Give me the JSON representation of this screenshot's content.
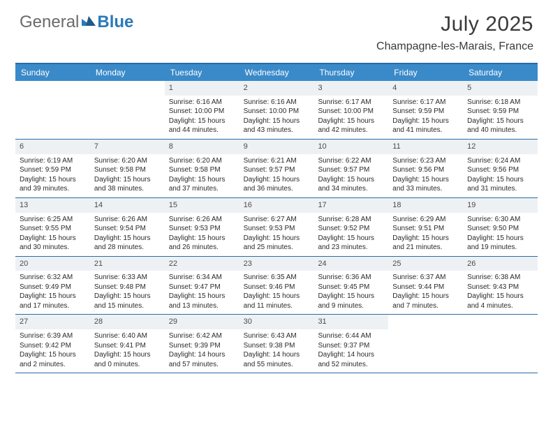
{
  "logo": {
    "part1": "General",
    "part2": "Blue"
  },
  "title": "July 2025",
  "location": "Champagne-les-Marais, France",
  "colors": {
    "header_bar": "#3a8ac9",
    "rule": "#2a6aa8",
    "daynum_bg": "#eef1f4",
    "text": "#2a2a2a",
    "logo_gray": "#6a6a6a",
    "logo_blue": "#2a7ab9"
  },
  "weekdays": [
    "Sunday",
    "Monday",
    "Tuesday",
    "Wednesday",
    "Thursday",
    "Friday",
    "Saturday"
  ],
  "weeks": [
    [
      null,
      null,
      {
        "n": "1",
        "sr": "Sunrise: 6:16 AM",
        "ss": "Sunset: 10:00 PM",
        "dl": "Daylight: 15 hours and 44 minutes."
      },
      {
        "n": "2",
        "sr": "Sunrise: 6:16 AM",
        "ss": "Sunset: 10:00 PM",
        "dl": "Daylight: 15 hours and 43 minutes."
      },
      {
        "n": "3",
        "sr": "Sunrise: 6:17 AM",
        "ss": "Sunset: 10:00 PM",
        "dl": "Daylight: 15 hours and 42 minutes."
      },
      {
        "n": "4",
        "sr": "Sunrise: 6:17 AM",
        "ss": "Sunset: 9:59 PM",
        "dl": "Daylight: 15 hours and 41 minutes."
      },
      {
        "n": "5",
        "sr": "Sunrise: 6:18 AM",
        "ss": "Sunset: 9:59 PM",
        "dl": "Daylight: 15 hours and 40 minutes."
      }
    ],
    [
      {
        "n": "6",
        "sr": "Sunrise: 6:19 AM",
        "ss": "Sunset: 9:59 PM",
        "dl": "Daylight: 15 hours and 39 minutes."
      },
      {
        "n": "7",
        "sr": "Sunrise: 6:20 AM",
        "ss": "Sunset: 9:58 PM",
        "dl": "Daylight: 15 hours and 38 minutes."
      },
      {
        "n": "8",
        "sr": "Sunrise: 6:20 AM",
        "ss": "Sunset: 9:58 PM",
        "dl": "Daylight: 15 hours and 37 minutes."
      },
      {
        "n": "9",
        "sr": "Sunrise: 6:21 AM",
        "ss": "Sunset: 9:57 PM",
        "dl": "Daylight: 15 hours and 36 minutes."
      },
      {
        "n": "10",
        "sr": "Sunrise: 6:22 AM",
        "ss": "Sunset: 9:57 PM",
        "dl": "Daylight: 15 hours and 34 minutes."
      },
      {
        "n": "11",
        "sr": "Sunrise: 6:23 AM",
        "ss": "Sunset: 9:56 PM",
        "dl": "Daylight: 15 hours and 33 minutes."
      },
      {
        "n": "12",
        "sr": "Sunrise: 6:24 AM",
        "ss": "Sunset: 9:56 PM",
        "dl": "Daylight: 15 hours and 31 minutes."
      }
    ],
    [
      {
        "n": "13",
        "sr": "Sunrise: 6:25 AM",
        "ss": "Sunset: 9:55 PM",
        "dl": "Daylight: 15 hours and 30 minutes."
      },
      {
        "n": "14",
        "sr": "Sunrise: 6:26 AM",
        "ss": "Sunset: 9:54 PM",
        "dl": "Daylight: 15 hours and 28 minutes."
      },
      {
        "n": "15",
        "sr": "Sunrise: 6:26 AM",
        "ss": "Sunset: 9:53 PM",
        "dl": "Daylight: 15 hours and 26 minutes."
      },
      {
        "n": "16",
        "sr": "Sunrise: 6:27 AM",
        "ss": "Sunset: 9:53 PM",
        "dl": "Daylight: 15 hours and 25 minutes."
      },
      {
        "n": "17",
        "sr": "Sunrise: 6:28 AM",
        "ss": "Sunset: 9:52 PM",
        "dl": "Daylight: 15 hours and 23 minutes."
      },
      {
        "n": "18",
        "sr": "Sunrise: 6:29 AM",
        "ss": "Sunset: 9:51 PM",
        "dl": "Daylight: 15 hours and 21 minutes."
      },
      {
        "n": "19",
        "sr": "Sunrise: 6:30 AM",
        "ss": "Sunset: 9:50 PM",
        "dl": "Daylight: 15 hours and 19 minutes."
      }
    ],
    [
      {
        "n": "20",
        "sr": "Sunrise: 6:32 AM",
        "ss": "Sunset: 9:49 PM",
        "dl": "Daylight: 15 hours and 17 minutes."
      },
      {
        "n": "21",
        "sr": "Sunrise: 6:33 AM",
        "ss": "Sunset: 9:48 PM",
        "dl": "Daylight: 15 hours and 15 minutes."
      },
      {
        "n": "22",
        "sr": "Sunrise: 6:34 AM",
        "ss": "Sunset: 9:47 PM",
        "dl": "Daylight: 15 hours and 13 minutes."
      },
      {
        "n": "23",
        "sr": "Sunrise: 6:35 AM",
        "ss": "Sunset: 9:46 PM",
        "dl": "Daylight: 15 hours and 11 minutes."
      },
      {
        "n": "24",
        "sr": "Sunrise: 6:36 AM",
        "ss": "Sunset: 9:45 PM",
        "dl": "Daylight: 15 hours and 9 minutes."
      },
      {
        "n": "25",
        "sr": "Sunrise: 6:37 AM",
        "ss": "Sunset: 9:44 PM",
        "dl": "Daylight: 15 hours and 7 minutes."
      },
      {
        "n": "26",
        "sr": "Sunrise: 6:38 AM",
        "ss": "Sunset: 9:43 PM",
        "dl": "Daylight: 15 hours and 4 minutes."
      }
    ],
    [
      {
        "n": "27",
        "sr": "Sunrise: 6:39 AM",
        "ss": "Sunset: 9:42 PM",
        "dl": "Daylight: 15 hours and 2 minutes."
      },
      {
        "n": "28",
        "sr": "Sunrise: 6:40 AM",
        "ss": "Sunset: 9:41 PM",
        "dl": "Daylight: 15 hours and 0 minutes."
      },
      {
        "n": "29",
        "sr": "Sunrise: 6:42 AM",
        "ss": "Sunset: 9:39 PM",
        "dl": "Daylight: 14 hours and 57 minutes."
      },
      {
        "n": "30",
        "sr": "Sunrise: 6:43 AM",
        "ss": "Sunset: 9:38 PM",
        "dl": "Daylight: 14 hours and 55 minutes."
      },
      {
        "n": "31",
        "sr": "Sunrise: 6:44 AM",
        "ss": "Sunset: 9:37 PM",
        "dl": "Daylight: 14 hours and 52 minutes."
      },
      null,
      null
    ]
  ]
}
